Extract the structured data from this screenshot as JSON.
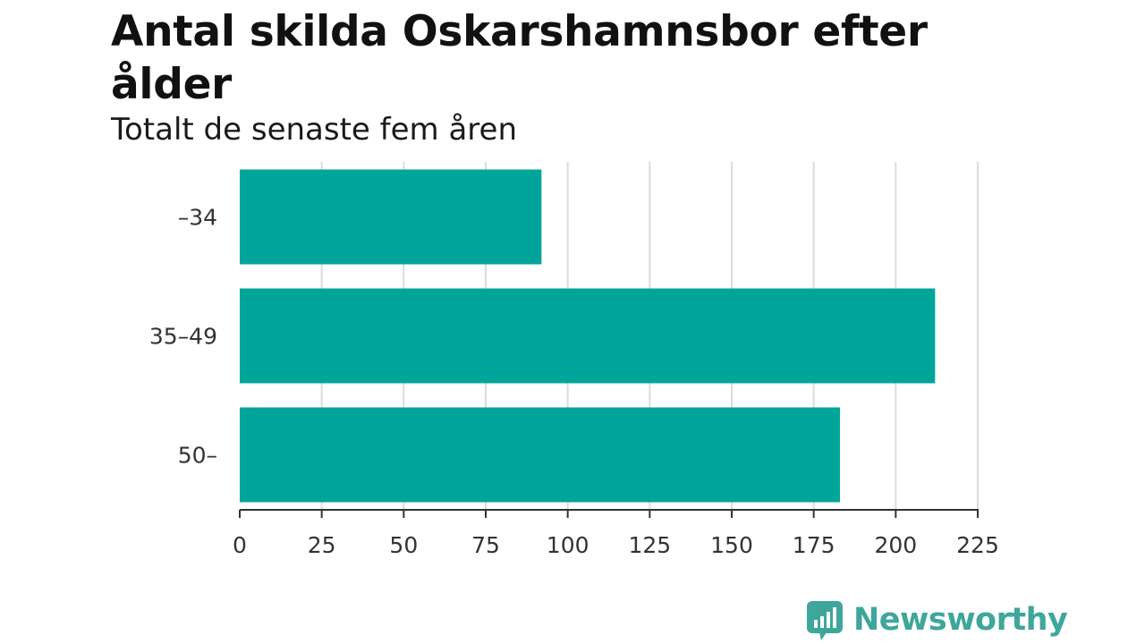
{
  "chart_data": {
    "type": "bar",
    "orientation": "horizontal",
    "title": "Antal skilda Oskarshamnsbor efter ålder",
    "subtitle": "Totalt de senaste fem åren",
    "categories": [
      "–34",
      "35–49",
      "50–"
    ],
    "values": [
      92,
      212,
      183
    ],
    "xlim": [
      0,
      225
    ],
    "xticks": [
      0,
      25,
      50,
      75,
      100,
      125,
      150,
      175,
      200,
      225
    ],
    "grid": true,
    "legend": "none",
    "bar_color": "#00a59a"
  },
  "colors": {
    "bar": "#00a59a",
    "grid": "#dcdcdc",
    "axis": "#333333",
    "brand": "#3fa69b"
  },
  "brand": {
    "name": "Newsworthy",
    "icon": "newsworthy-logo-icon"
  }
}
